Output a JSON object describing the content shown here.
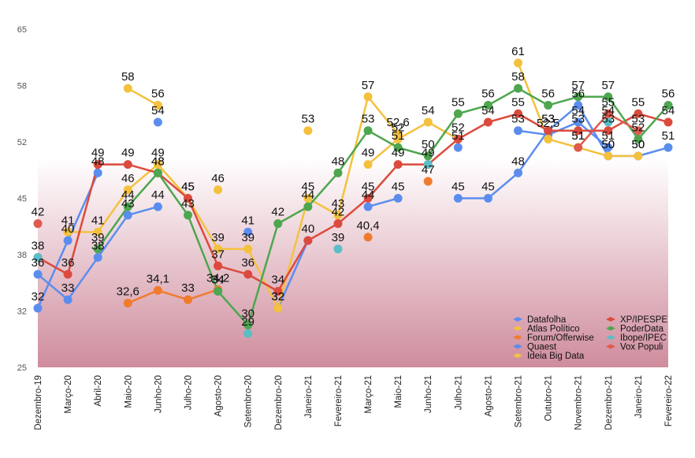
{
  "chart_data": {
    "type": "line",
    "title": "",
    "xlabel": "",
    "ylabel": "",
    "ylim": [
      25,
      65
    ],
    "y_ticks": [
      "65",
      "58",
      "52",
      "45",
      "38",
      "32",
      "25"
    ],
    "grid": false,
    "legend_position": "bottom-right",
    "categories": [
      "Dezembro-19",
      "Março-20",
      "Abril-20",
      "Maio-20",
      "Junho-20",
      "Julho-20",
      "Agosto-20",
      "Setembro-20",
      "Dezembro-20",
      "Janeiro-21",
      "Fevereiro-21",
      "Março-21",
      "Maio-21",
      "Junho-21",
      "Julho-21",
      "Agosto-21",
      "Setembro-21",
      "Outubro-21",
      "Novembro-21",
      "Dezembro-21",
      "Janeiro-21",
      "Fevereiro-22"
    ],
    "series": [
      {
        "name": "Datafolha",
        "color": "#5b8def",
        "values": [
          36,
          33,
          38,
          43,
          44,
          null,
          34,
          null,
          32,
          40,
          null,
          44,
          45,
          null,
          45,
          45,
          48,
          53,
          56,
          50,
          50,
          51
        ],
        "labels": [
          "36",
          "33",
          "38",
          "43",
          "44",
          null,
          "34",
          null,
          "32",
          "40",
          null,
          "44",
          "45",
          null,
          "45",
          "45",
          "48",
          "53",
          "56",
          "50",
          "50",
          "51"
        ]
      },
      {
        "name": "Atlas Político",
        "color": "#f4c13e",
        "values": [
          null,
          41,
          41,
          46,
          49,
          45,
          39,
          39,
          32,
          45,
          43,
          57,
          52.6,
          null,
          null,
          null,
          null,
          null,
          null,
          null,
          null,
          null
        ],
        "labels": [
          null,
          "41",
          "41",
          "46",
          "49",
          "45",
          "39",
          "39",
          "32",
          "45",
          "43",
          "57",
          "52,6",
          null,
          null,
          null,
          null,
          null,
          null,
          null,
          null,
          null
        ]
      },
      {
        "name": "Forum/Offerwise",
        "color": "#f07b2d",
        "values": [
          null,
          null,
          null,
          32.6,
          34.1,
          33,
          34.2,
          null,
          null,
          null,
          null,
          40.4,
          null,
          47,
          null,
          null,
          null,
          null,
          null,
          null,
          null,
          null
        ],
        "labels": [
          null,
          null,
          null,
          "32,6",
          "34,1",
          "33",
          "34,2",
          null,
          null,
          null,
          null,
          "40,4",
          null,
          "47",
          null,
          null,
          null,
          null,
          null,
          null,
          null,
          null
        ]
      },
      {
        "name": "Quaest",
        "color": "#5b8def",
        "values": [
          32,
          40,
          48,
          null,
          54,
          null,
          null,
          41,
          null,
          null,
          null,
          null,
          null,
          null,
          51,
          null,
          53,
          52.5,
          54,
          51,
          null,
          null
        ],
        "labels": [
          "32",
          "40",
          "48",
          null,
          "54",
          null,
          null,
          "41",
          null,
          null,
          null,
          null,
          null,
          null,
          "51",
          null,
          "53",
          "52,5",
          "54",
          "51",
          null,
          null
        ]
      },
      {
        "name": "Ideia Big Data",
        "color": "#f4c13e",
        "values": [
          null,
          null,
          null,
          58,
          56,
          null,
          46,
          null,
          null,
          53,
          null,
          49,
          52,
          54,
          52,
          null,
          61,
          52,
          51,
          50,
          50,
          null
        ],
        "labels": [
          null,
          null,
          null,
          "58",
          "56",
          null,
          "46",
          null,
          null,
          "53",
          null,
          "49",
          "52",
          "54",
          null,
          null,
          "61",
          null,
          "51",
          "50",
          "50",
          null
        ]
      },
      {
        "name": "XP/IPESPE",
        "color": "#dc4a3d",
        "values": [
          38,
          36,
          49,
          49,
          48,
          45,
          37,
          36,
          34,
          40,
          42,
          45,
          49,
          49,
          52,
          54,
          55,
          53,
          53,
          53,
          55,
          54
        ],
        "labels": [
          "38",
          "36",
          "49",
          "49",
          "48",
          "45",
          "37",
          "36",
          "34",
          null,
          "42",
          "45",
          "49",
          "49",
          "52",
          "54",
          "55",
          "53",
          "53",
          "53",
          "55",
          "54"
        ]
      },
      {
        "name": "PoderData",
        "color": "#4ea64f",
        "values": [
          null,
          null,
          39,
          44,
          48,
          43,
          34,
          30,
          42,
          44,
          48,
          53,
          51,
          50,
          55,
          56,
          58,
          56,
          57,
          57,
          52,
          56
        ],
        "labels": [
          null,
          null,
          "39",
          "44",
          "48",
          "43",
          "34",
          "30",
          "42",
          "44",
          "48",
          "53",
          "51",
          "50",
          "55",
          "56",
          "58",
          "56",
          "57",
          "57",
          "52",
          "56"
        ]
      },
      {
        "name": "Ibope/IPEC",
        "color": "#5bbdc6",
        "values": [
          38,
          null,
          null,
          null,
          null,
          null,
          null,
          29,
          null,
          null,
          39,
          null,
          null,
          49,
          null,
          null,
          null,
          null,
          null,
          54,
          null,
          null
        ],
        "labels": [
          null,
          null,
          null,
          null,
          null,
          null,
          null,
          "29",
          null,
          null,
          "39",
          null,
          null,
          null,
          null,
          null,
          null,
          null,
          null,
          "54",
          null,
          null
        ]
      },
      {
        "name": "Vox Populi",
        "color": "#e05a4d",
        "values": [
          42,
          null,
          null,
          null,
          null,
          null,
          null,
          null,
          null,
          null,
          null,
          null,
          null,
          null,
          null,
          null,
          null,
          null,
          51,
          55,
          53,
          null
        ],
        "labels": [
          "42",
          null,
          null,
          null,
          null,
          null,
          null,
          null,
          null,
          null,
          null,
          null,
          null,
          null,
          null,
          null,
          null,
          null,
          "51",
          "55",
          "53",
          null
        ]
      }
    ],
    "legend": {
      "left": [
        "Datafolha",
        "Atlas Político",
        "Forum/Offerwise",
        "Quaest",
        "Ideia Big Data"
      ],
      "right": [
        "XP/IPESPE",
        "PoderData",
        "Ibope/IPEC",
        "Vox Populi"
      ]
    },
    "background": {
      "top_color": "#ffffff",
      "bottom_color": "#cf8c9d"
    }
  }
}
